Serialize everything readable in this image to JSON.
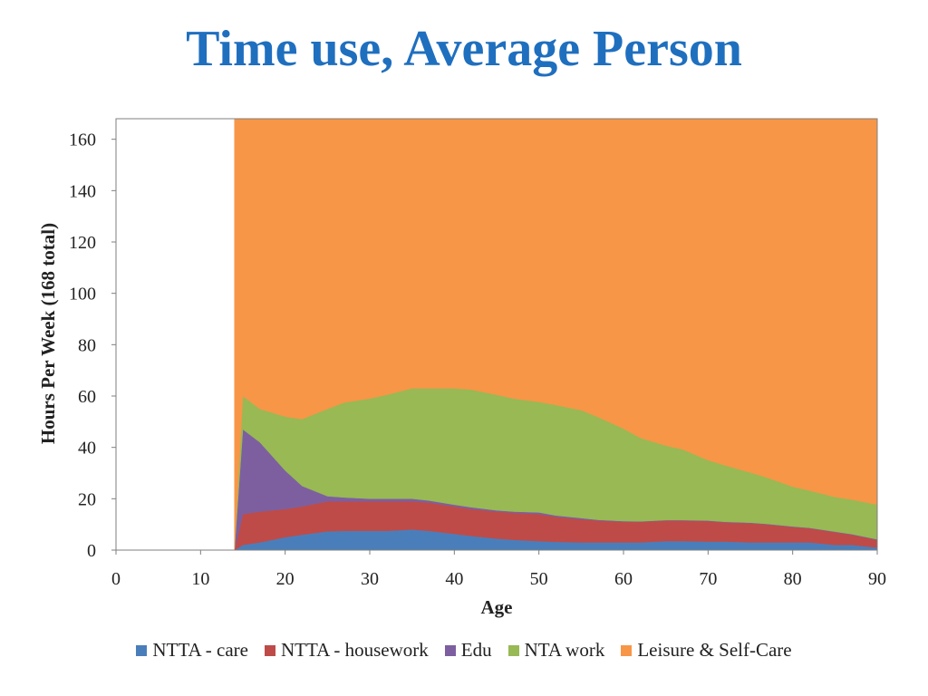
{
  "title": "Time use, Average Person",
  "chart_data": {
    "type": "area",
    "stacked": true,
    "xlabel": "Age",
    "ylabel": "Hours Per Week (168 total)",
    "xlim": [
      0,
      90
    ],
    "ylim": [
      0,
      168
    ],
    "xticks": [
      0,
      10,
      20,
      30,
      40,
      50,
      60,
      70,
      80,
      90
    ],
    "yticks": [
      0,
      20,
      40,
      60,
      80,
      100,
      120,
      140,
      160
    ],
    "grid": false,
    "legend_position": "bottom",
    "x": [
      14,
      15,
      17,
      20,
      22,
      25,
      27,
      30,
      32,
      35,
      37,
      40,
      42,
      45,
      47,
      50,
      52,
      55,
      57,
      60,
      62,
      65,
      67,
      70,
      72,
      75,
      77,
      80,
      82,
      85,
      87,
      90
    ],
    "series": [
      {
        "name": "NTTA - care",
        "color": "#4A7EBB",
        "values": [
          0,
          2,
          3,
          5,
          6,
          7.3,
          7.5,
          7.5,
          7.5,
          8,
          7.5,
          6.3,
          5.5,
          4.5,
          4,
          3.5,
          3.2,
          3,
          3,
          3,
          3,
          3.5,
          3.5,
          3.3,
          3.3,
          3,
          3,
          3,
          3,
          2,
          2,
          1
        ]
      },
      {
        "name": "NTTA - housework",
        "color": "#BE4B48",
        "values": [
          0,
          12,
          12,
          11,
          11,
          11.7,
          11.5,
          11.5,
          11.5,
          11,
          11,
          10.7,
          10.5,
          10.5,
          10.5,
          10.5,
          9.8,
          9,
          8.5,
          8,
          8,
          8,
          8,
          8,
          7.5,
          7.5,
          7,
          6,
          5.5,
          5,
          4,
          3
        ]
      },
      {
        "name": "Edu",
        "color": "#7D5FA0",
        "values": [
          0,
          33,
          27,
          15,
          8,
          2,
          1.5,
          1,
          1,
          1,
          0.8,
          0.7,
          0.7,
          0.5,
          0.5,
          0.7,
          0.5,
          0.5,
          0.3,
          0.3,
          0.2,
          0.2,
          0.2,
          0.2,
          0.2,
          0.2,
          0.2,
          0.2,
          0.2,
          0.2,
          0.2,
          0.2
        ]
      },
      {
        "name": "NTA work",
        "color": "#98B954",
        "values": [
          0,
          13,
          13,
          21,
          26,
          34,
          37,
          39,
          40.5,
          43,
          43.7,
          45.3,
          45.8,
          45,
          44,
          43,
          43,
          42,
          40,
          36,
          32.5,
          29,
          27.5,
          23.5,
          22,
          19.5,
          18,
          15.5,
          14.5,
          13.5,
          13.5,
          13.5
        ]
      },
      {
        "name": "Leisure & Self-Care",
        "color": "#F79646",
        "values": [
          168,
          108,
          113,
          116,
          117,
          113,
          110.5,
          109,
          107.5,
          105,
          105,
          105,
          105.5,
          107.5,
          109,
          110.3,
          111.5,
          113.5,
          116.2,
          120.7,
          124.3,
          127.3,
          128.8,
          133,
          135,
          137.8,
          139.8,
          143.3,
          144.8,
          147.3,
          148.3,
          150.3
        ]
      }
    ]
  }
}
